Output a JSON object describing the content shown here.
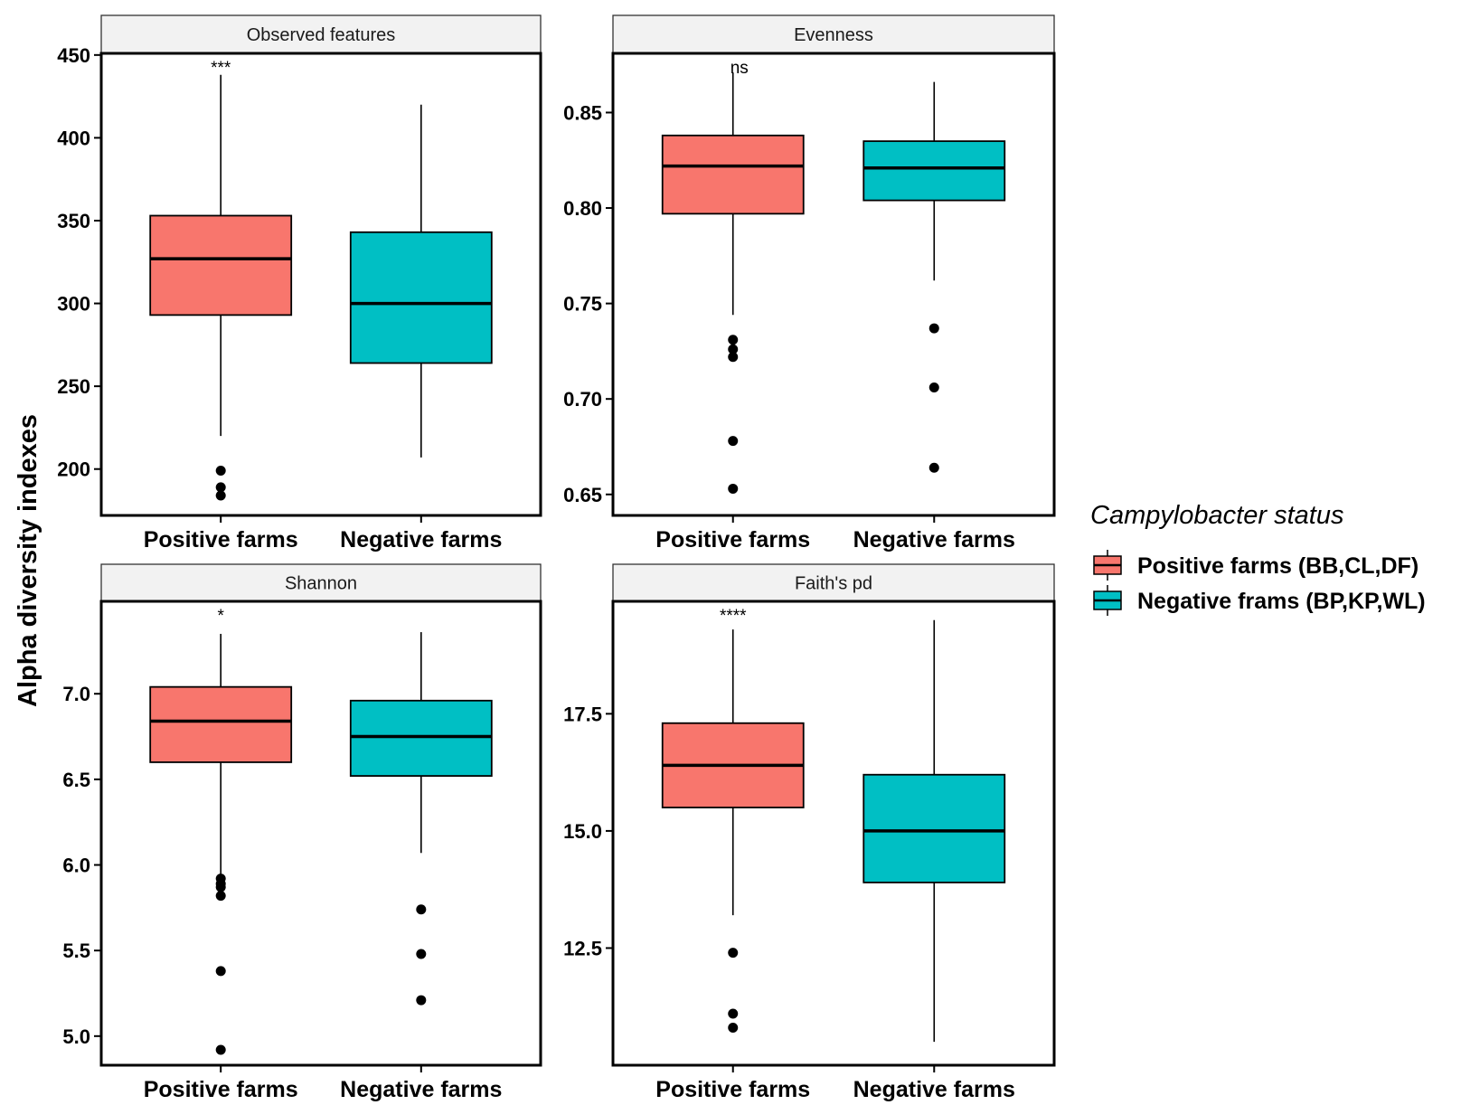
{
  "chart_data": {
    "type": "boxplot",
    "ylabel": "Alpha diversity indexes",
    "categories": [
      "Positive farms",
      "Negative farms"
    ],
    "colors": {
      "positive": "#F8766D",
      "negative": "#00BFC4"
    },
    "legend": {
      "title": "Campylobacter status",
      "position": "right",
      "entries": [
        {
          "label": "Positive farms (BB,CL,DF)",
          "color": "#F8766D"
        },
        {
          "label": "Negative frams (BP,KP,WL)",
          "color": "#00BFC4"
        }
      ]
    },
    "panels": [
      {
        "title": "Observed features",
        "ylim": [
          172,
          451
        ],
        "ticks": [
          200,
          250,
          300,
          350,
          400,
          450
        ],
        "tick_labels": [
          "200",
          "250",
          "300",
          "350",
          "400",
          "450"
        ],
        "significance": "***",
        "boxes": [
          {
            "category": "Positive farms",
            "whisker_low": 220,
            "q1": 293,
            "median": 327,
            "q3": 353,
            "whisker_high": 438,
            "outliers": [
              199,
              189,
              184
            ]
          },
          {
            "category": "Negative farms",
            "whisker_low": 207,
            "q1": 264,
            "median": 300,
            "q3": 343,
            "whisker_high": 420,
            "outliers": []
          }
        ]
      },
      {
        "title": "Evenness",
        "ylim": [
          0.639,
          0.881
        ],
        "ticks": [
          0.65,
          0.7,
          0.75,
          0.8,
          0.85
        ],
        "tick_labels": [
          "0.65",
          "0.70",
          "0.75",
          "0.80",
          "0.85"
        ],
        "significance": "ns",
        "boxes": [
          {
            "category": "Positive farms",
            "whisker_low": 0.744,
            "q1": 0.797,
            "median": 0.822,
            "q3": 0.838,
            "whisker_high": 0.871,
            "outliers": [
              0.731,
              0.726,
              0.722,
              0.678,
              0.653
            ]
          },
          {
            "category": "Negative farms",
            "whisker_low": 0.762,
            "q1": 0.804,
            "median": 0.821,
            "q3": 0.835,
            "whisker_high": 0.866,
            "outliers": [
              0.737,
              0.706,
              0.664
            ]
          }
        ]
      },
      {
        "title": "Shannon",
        "ylim": [
          4.83,
          7.54
        ],
        "ticks": [
          5.0,
          5.5,
          6.0,
          6.5,
          7.0
        ],
        "tick_labels": [
          "5.0",
          "5.5",
          "6.0",
          "6.5",
          "7.0"
        ],
        "significance": "*",
        "boxes": [
          {
            "category": "Positive farms",
            "whisker_low": 5.94,
            "q1": 6.6,
            "median": 6.84,
            "q3": 7.04,
            "whisker_high": 7.35,
            "outliers": [
              5.92,
              5.89,
              5.87,
              5.82,
              5.38,
              4.92
            ]
          },
          {
            "category": "Negative farms",
            "whisker_low": 6.07,
            "q1": 6.52,
            "median": 6.75,
            "q3": 6.96,
            "whisker_high": 7.36,
            "outliers": [
              5.74,
              5.48,
              5.21
            ]
          }
        ]
      },
      {
        "title": "Faith's pd",
        "ylim": [
          10.0,
          19.9
        ],
        "ticks": [
          12.5,
          15.0,
          17.5
        ],
        "tick_labels": [
          "12.5",
          "15.0",
          "17.5"
        ],
        "significance": "****",
        "boxes": [
          {
            "category": "Positive farms",
            "whisker_low": 13.2,
            "q1": 15.5,
            "median": 16.4,
            "q3": 17.3,
            "whisker_high": 19.3,
            "outliers": [
              12.4,
              11.1,
              10.8
            ]
          },
          {
            "category": "Negative farms",
            "whisker_low": 10.5,
            "q1": 13.9,
            "median": 15.0,
            "q3": 16.2,
            "whisker_high": 19.5,
            "outliers": []
          }
        ]
      }
    ]
  }
}
